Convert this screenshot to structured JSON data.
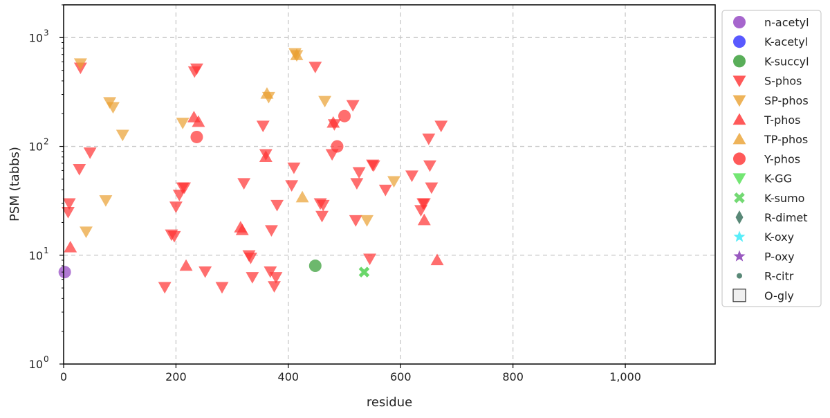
{
  "chart_data": {
    "type": "scatter",
    "xlabel": "residue",
    "ylabel": "PSM (tabbs)",
    "xlim": [
      0,
      1160
    ],
    "ylim": [
      1,
      2000
    ],
    "yscale": "log",
    "grid": true,
    "legend_position": "outside-right",
    "xticks": [
      {
        "value": 0,
        "label": "0"
      },
      {
        "value": 200,
        "label": "200"
      },
      {
        "value": 400,
        "label": "400"
      },
      {
        "value": 600,
        "label": "600"
      },
      {
        "value": 800,
        "label": "800"
      },
      {
        "value": 1000,
        "label": "1,000"
      }
    ],
    "yticks": [
      {
        "value": 1,
        "base": "10",
        "exp": "0"
      },
      {
        "value": 10,
        "base": "10",
        "exp": "1"
      },
      {
        "value": 100,
        "base": "10",
        "exp": "2"
      },
      {
        "value": 1000,
        "base": "10",
        "exp": "3"
      }
    ],
    "series": [
      {
        "name": "n-acetyl",
        "marker": "circle",
        "color": "#9040c0",
        "points": [
          [
            2,
            7
          ]
        ]
      },
      {
        "name": "K-acetyl",
        "marker": "circle",
        "color": "#3030ff",
        "points": []
      },
      {
        "name": "K-succyl",
        "marker": "circle",
        "color": "#2f9a2f",
        "points": [
          [
            448,
            8
          ]
        ]
      },
      {
        "name": "S-phos",
        "marker": "triangle-down",
        "color": "#ff3030",
        "points": [
          [
            10,
            30
          ],
          [
            8,
            25
          ],
          [
            28,
            62
          ],
          [
            30,
            530
          ],
          [
            47,
            88
          ],
          [
            180,
            5.1
          ],
          [
            192,
            15.5
          ],
          [
            197,
            15
          ],
          [
            200,
            28
          ],
          [
            206,
            36
          ],
          [
            212,
            42
          ],
          [
            215,
            42
          ],
          [
            233,
            490
          ],
          [
            237,
            520
          ],
          [
            252,
            7.1
          ],
          [
            282,
            5.1
          ],
          [
            321,
            46
          ],
          [
            330,
            10
          ],
          [
            333,
            9.5
          ],
          [
            336,
            6.3
          ],
          [
            355,
            155
          ],
          [
            360,
            85
          ],
          [
            368,
            7.1
          ],
          [
            370,
            17
          ],
          [
            375,
            5.2
          ],
          [
            378,
            6.3
          ],
          [
            380,
            29
          ],
          [
            406,
            44
          ],
          [
            410,
            64
          ],
          [
            448,
            540
          ],
          [
            457,
            30
          ],
          [
            460,
            23
          ],
          [
            462,
            29
          ],
          [
            478,
            85
          ],
          [
            482,
            160
          ],
          [
            515,
            240
          ],
          [
            520,
            21
          ],
          [
            522,
            46
          ],
          [
            526,
            58
          ],
          [
            545,
            9.3
          ],
          [
            550,
            68
          ],
          [
            552,
            67
          ],
          [
            573,
            40
          ],
          [
            620,
            54
          ],
          [
            636,
            26
          ],
          [
            640,
            30
          ],
          [
            642,
            30
          ],
          [
            650,
            118
          ],
          [
            652,
            67
          ],
          [
            655,
            42
          ],
          [
            672,
            155
          ]
        ]
      },
      {
        "name": "SP-phos",
        "marker": "triangle-down",
        "color": "#eaa030",
        "points": [
          [
            30,
            580
          ],
          [
            40,
            16.5
          ],
          [
            75,
            32
          ],
          [
            82,
            255
          ],
          [
            88,
            230
          ],
          [
            105,
            128
          ],
          [
            212,
            165
          ],
          [
            365,
            285
          ],
          [
            412,
            720
          ],
          [
            415,
            690
          ],
          [
            465,
            262
          ],
          [
            540,
            21
          ],
          [
            588,
            48
          ]
        ]
      },
      {
        "name": "T-phos",
        "marker": "triangle-up",
        "color": "#ff3030",
        "points": [
          [
            12,
            11.8
          ],
          [
            218,
            8
          ],
          [
            232,
            185
          ],
          [
            240,
            168
          ],
          [
            315,
            18
          ],
          [
            318,
            17
          ],
          [
            360,
            80
          ],
          [
            480,
            165
          ],
          [
            642,
            21
          ],
          [
            665,
            9
          ]
        ]
      },
      {
        "name": "TP-phos",
        "marker": "triangle-up",
        "color": "#eaa030",
        "points": [
          [
            362,
            305
          ],
          [
            415,
            690
          ],
          [
            425,
            34
          ]
        ]
      },
      {
        "name": "Y-phos",
        "marker": "circle",
        "color": "#ff3030",
        "points": [
          [
            237,
            122
          ],
          [
            487,
            100
          ],
          [
            500,
            190
          ]
        ]
      },
      {
        "name": "K-GG",
        "marker": "triangle-down",
        "color": "#50e050",
        "points": []
      },
      {
        "name": "K-sumo",
        "marker": "x",
        "color": "#50d050",
        "points": [
          [
            535,
            7
          ]
        ]
      },
      {
        "name": "R-dimet",
        "marker": "thin-diamond",
        "color": "#2f6a55",
        "points": []
      },
      {
        "name": "K-oxy",
        "marker": "star",
        "color": "#30e8f8",
        "points": []
      },
      {
        "name": "P-oxy",
        "marker": "star",
        "color": "#8030b0",
        "points": []
      },
      {
        "name": "R-citr",
        "marker": "small-circle",
        "color": "#2f6a55",
        "points": []
      },
      {
        "name": "O-gly",
        "marker": "square",
        "color": "#f0f0f0",
        "points": []
      }
    ]
  }
}
